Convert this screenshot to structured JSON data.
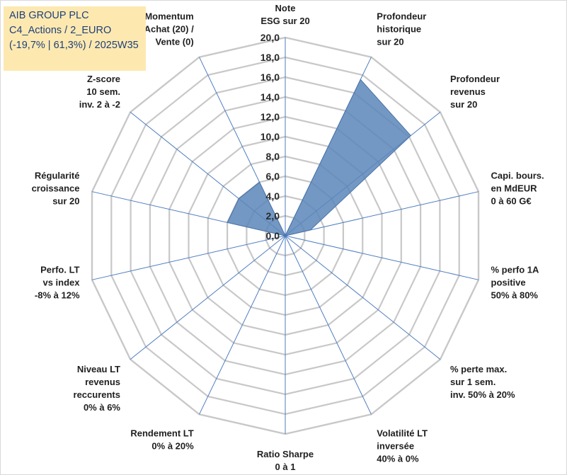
{
  "title_box": {
    "line1": "AIB GROUP PLC",
    "line2": "C4_Actions / 2_EURO",
    "line3": "(-19,7% | 61,3%) / 2025W35"
  },
  "chart_data": {
    "type": "radar",
    "rmin": 0,
    "rmax": 20,
    "tick_step": 2,
    "tick_labels": [
      "0,0",
      "2,0",
      "4,0",
      "6,0",
      "8,0",
      "10,0",
      "12,0",
      "14,0",
      "16,0",
      "18,0",
      "20,0"
    ],
    "fill_color": "#5b86ba",
    "axis_line_color": "#4f7ec0",
    "grid_color": "#c8c8c8",
    "categories": [
      [
        "Note",
        "ESG sur 20"
      ],
      [
        "Profondeur",
        "historique",
        "sur 20"
      ],
      [
        "Profondeur",
        "revenus",
        "sur 20"
      ],
      [
        "Capi. bours.",
        "en MdEUR",
        "0 à 60 G€"
      ],
      [
        "% perfo 1A",
        "positive",
        "50% à 80%"
      ],
      [
        "% perte max.",
        "sur 1 sem.",
        "inv. 50% à 20%"
      ],
      [
        "Volatilité LT",
        "inversée",
        "40% à 0%"
      ],
      [
        "Ratio Sharpe",
        "0 à 1"
      ],
      [
        "Rendement LT",
        "0% à 20%"
      ],
      [
        "Niveau LT",
        "revenus",
        "reccurents",
        "0% à 6%"
      ],
      [
        "Perfo. LT",
        "vs index",
        "-8% à 12%"
      ],
      [
        "Régularité",
        "croissance",
        "sur 20"
      ],
      [
        "Z-score",
        "10 sem.",
        "inv. 2 à -2"
      ],
      [
        "Momentum",
        "Achat (20) /",
        "Vente (0)"
      ]
    ],
    "values": [
      0,
      17.5,
      16.2,
      2.6,
      0,
      0,
      0,
      0,
      0,
      0,
      0,
      6.0,
      6.0,
      6.0
    ]
  }
}
